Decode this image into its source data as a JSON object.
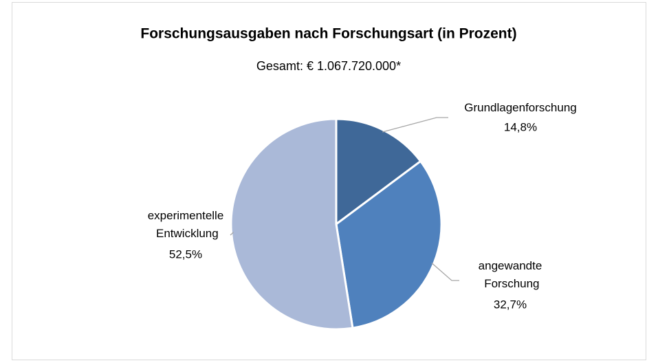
{
  "chart_data": {
    "type": "pie",
    "title": "Forschungsausgaben nach Forschungsart (in Prozent)",
    "subtitle": "Gesamt: € 1.067.720.000*",
    "categories": [
      "Grundlagenforschung",
      "angewandte Forschung",
      "experimentelle Entwicklung"
    ],
    "values": [
      14.8,
      32.7,
      52.5
    ],
    "value_labels": [
      "14,8%",
      "32,7%",
      "52,5%"
    ],
    "colors": [
      "#3f6898",
      "#4f81bd",
      "#aab9d8"
    ]
  }
}
